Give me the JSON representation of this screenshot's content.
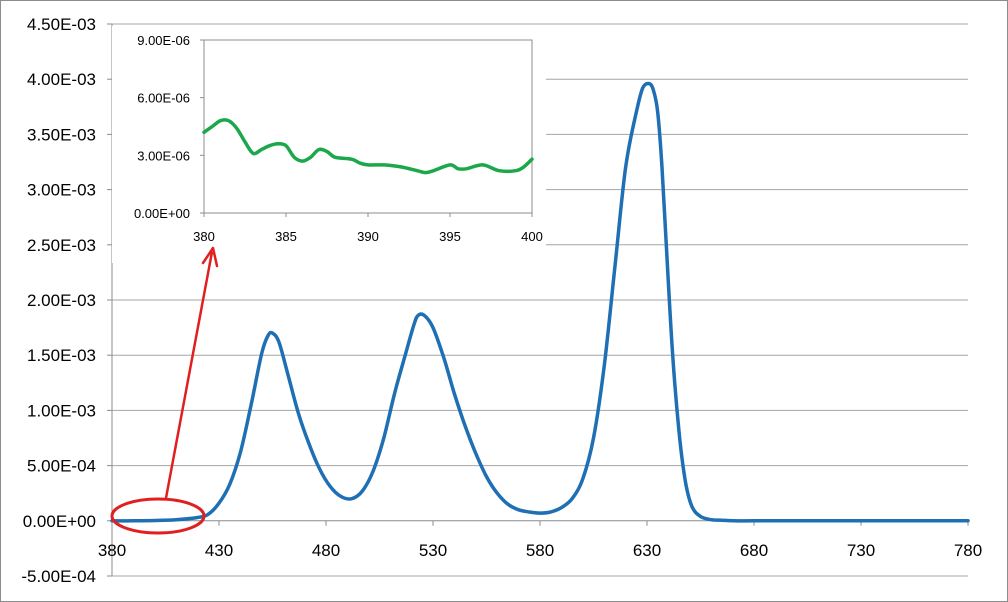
{
  "colors": {
    "main_series": "#1f6fb4",
    "inset_series": "#1aa84a",
    "callout": "#e02020",
    "gridline": "#a6a6a6",
    "axis": "#8c8c8c"
  },
  "chart_data": [
    {
      "type": "line",
      "title": "",
      "xlabel": "",
      "ylabel": "",
      "xlim": [
        380,
        780
      ],
      "ylim": [
        -0.0005,
        0.0045
      ],
      "grid": true,
      "legend": "none",
      "x_ticks": [
        "380",
        "430",
        "480",
        "530",
        "580",
        "630",
        "680",
        "730",
        "780"
      ],
      "y_ticks": [
        "4.50E-03",
        "4.00E-03",
        "3.50E-03",
        "3.00E-03",
        "2.50E-03",
        "2.00E-03",
        "1.50E-03",
        "1.00E-03",
        "5.00E-04",
        "0.00E+00",
        "-5.00E-04"
      ],
      "series": [
        {
          "x": [
            380,
            390,
            400,
            410,
            420,
            425,
            430,
            435,
            440,
            445,
            450,
            453,
            455,
            458,
            462,
            467,
            472,
            477,
            482,
            487,
            492,
            497,
            502,
            507,
            512,
            517,
            521,
            523,
            526,
            530,
            535,
            540,
            545,
            550,
            555,
            560,
            565,
            570,
            575,
            580,
            585,
            590,
            595,
            600,
            605,
            610,
            615,
            620,
            625,
            628,
            631,
            633,
            635,
            637,
            639,
            642,
            645,
            648,
            651,
            655,
            660,
            665,
            670,
            680,
            700,
            730,
            760,
            780
          ],
          "values": [
            0.0,
            0.0,
            3e-06,
            1e-05,
            3e-05,
            6e-05,
            0.00016,
            0.00033,
            0.00062,
            0.00105,
            0.00152,
            0.00168,
            0.0017,
            0.00162,
            0.00134,
            0.00098,
            0.0007,
            0.00047,
            0.00031,
            0.00022,
            0.0002,
            0.00027,
            0.00045,
            0.00075,
            0.00115,
            0.0015,
            0.00177,
            0.00186,
            0.00186,
            0.00175,
            0.00148,
            0.00115,
            0.00086,
            0.00061,
            0.0004,
            0.00025,
            0.00015,
            0.0001,
            8e-05,
            7e-05,
            8e-05,
            0.00012,
            0.0002,
            0.00038,
            0.00075,
            0.0014,
            0.0023,
            0.0032,
            0.0037,
            0.00392,
            0.00396,
            0.0039,
            0.0037,
            0.0032,
            0.0025,
            0.0015,
            0.0008,
            0.00035,
            0.00013,
            4e-05,
            1e-05,
            5e-06,
            0.0,
            0.0,
            0.0,
            0.0,
            0.0,
            0.0
          ]
        }
      ]
    },
    {
      "type": "line",
      "title": "",
      "xlabel": "",
      "ylabel": "",
      "xlim": [
        380,
        400
      ],
      "ylim": [
        0,
        9e-06
      ],
      "grid": false,
      "legend": "none",
      "x_ticks": [
        "380",
        "385",
        "390",
        "395",
        "400"
      ],
      "y_ticks": [
        "9.00E-06",
        "6.00E-06",
        "3.00E-06",
        "0.00E+00"
      ],
      "series": [
        {
          "x": [
            380,
            380.5,
            381,
            381.5,
            382,
            382.5,
            383,
            383.5,
            384,
            384.5,
            385,
            385.5,
            386,
            386.5,
            387,
            387.5,
            388,
            389,
            389.5,
            390,
            391,
            392,
            393,
            393.5,
            394,
            395,
            395.5,
            396,
            397,
            398,
            399,
            399.5,
            400
          ],
          "values": [
            4.2e-06,
            4.5e-06,
            4.8e-06,
            4.8e-06,
            4.4e-06,
            3.7e-06,
            3.1e-06,
            3.3e-06,
            3.5e-06,
            3.6e-06,
            3.5e-06,
            2.9e-06,
            2.7e-06,
            2.9e-06,
            3.3e-06,
            3.2e-06,
            2.9e-06,
            2.8e-06,
            2.6e-06,
            2.5e-06,
            2.5e-06,
            2.4e-06,
            2.2e-06,
            2.1e-06,
            2.2e-06,
            2.5e-06,
            2.3e-06,
            2.3e-06,
            2.5e-06,
            2.2e-06,
            2.2e-06,
            2.4e-06,
            2.8e-06
          ]
        }
      ]
    }
  ]
}
